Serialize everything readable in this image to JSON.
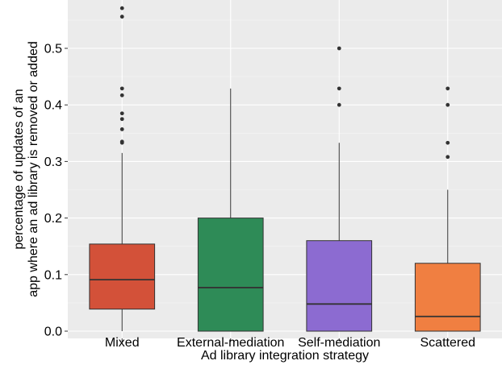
{
  "chart_data": {
    "type": "box",
    "title": "",
    "xlabel": "Ad library integration strategy",
    "ylabel_lines": [
      "percentage of updates of an",
      "app where an ad library is removed or added"
    ],
    "ylim": [
      0,
      0.57
    ],
    "y_ticks": [
      0.0,
      0.1,
      0.2,
      0.3,
      0.4,
      0.5
    ],
    "y_tick_labels": [
      "0.0",
      "0.1",
      "0.2",
      "0.3",
      "0.4",
      "0.5"
    ],
    "grid": true,
    "background": "#EBEBEB",
    "categories": [
      "Mixed",
      "External-mediation",
      "Self-mediation",
      "Scattered"
    ],
    "boxes": [
      {
        "category": "Mixed",
        "color": "#D35139",
        "q1": 0.039,
        "median": 0.091,
        "q3": 0.154,
        "whisker_low": 0.0,
        "whisker_high": 0.315,
        "outliers": [
          0.333,
          0.335,
          0.357,
          0.375,
          0.385,
          0.417,
          0.429,
          0.556,
          0.571
        ]
      },
      {
        "category": "External-mediation",
        "color": "#2E8B57",
        "q1": 0.0,
        "median": 0.077,
        "q3": 0.2,
        "whisker_low": 0.0,
        "whisker_high": 0.429,
        "outliers": []
      },
      {
        "category": "Self-mediation",
        "color": "#8C6BD1",
        "q1": 0.0,
        "median": 0.048,
        "q3": 0.16,
        "whisker_low": 0.0,
        "whisker_high": 0.333,
        "outliers": [
          0.4,
          0.429,
          0.5
        ]
      },
      {
        "category": "Scattered",
        "color": "#F07F41",
        "q1": 0.0,
        "median": 0.026,
        "q3": 0.12,
        "whisker_low": 0.0,
        "whisker_high": 0.25,
        "outliers": [
          0.308,
          0.333,
          0.4,
          0.429
        ]
      }
    ]
  }
}
